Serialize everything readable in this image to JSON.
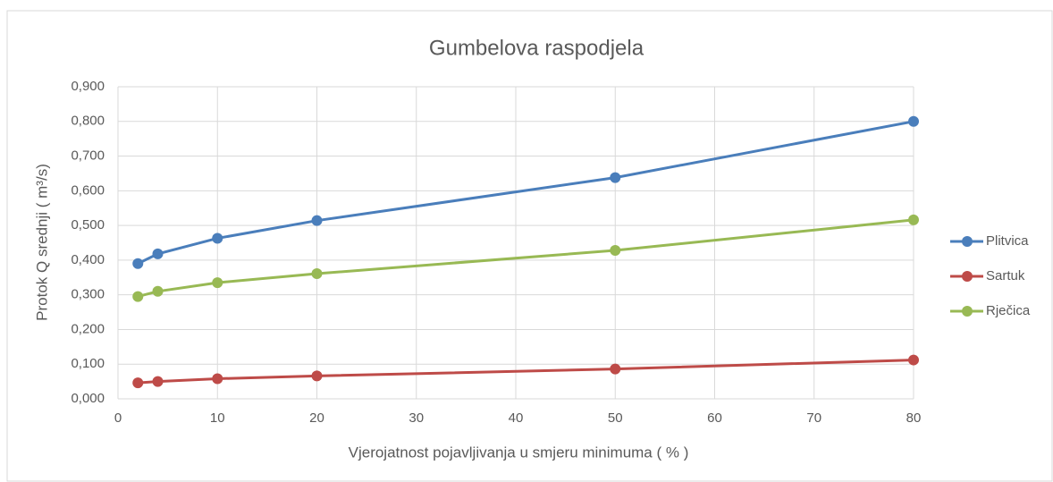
{
  "chart_data": {
    "type": "line",
    "title": "Gumbelova raspodjela",
    "x_label": "Vjerojatnost pojavljivanja  u smjeru minimuma ( % )",
    "y_label": "Protok Q srednji ( m³/s)",
    "x": [
      2,
      4,
      10,
      20,
      50,
      80
    ],
    "series": [
      {
        "name": "Plitvica",
        "color": "#4a7ebb",
        "values": [
          0.39,
          0.418,
          0.463,
          0.514,
          0.638,
          0.8
        ]
      },
      {
        "name": "Sartuk",
        "color": "#be4b48",
        "values": [
          0.046,
          0.05,
          0.058,
          0.066,
          0.086,
          0.112
        ]
      },
      {
        "name": "Rječica",
        "color": "#98b954",
        "values": [
          0.295,
          0.31,
          0.335,
          0.361,
          0.428,
          0.516
        ]
      }
    ],
    "xlim": [
      0,
      80
    ],
    "xticks": [
      0,
      10,
      20,
      30,
      40,
      50,
      60,
      70,
      80
    ],
    "ylim": [
      0,
      0.9
    ],
    "yticks": [
      {
        "value": 0,
        "label": "0,000"
      },
      {
        "value": 0.1,
        "label": "0,100"
      },
      {
        "value": 0.2,
        "label": "0,200"
      },
      {
        "value": 0.3,
        "label": "0,300"
      },
      {
        "value": 0.4,
        "label": "0,400"
      },
      {
        "value": 0.5,
        "label": "0,500"
      },
      {
        "value": 0.6,
        "label": "0,600"
      },
      {
        "value": 0.7,
        "label": "0,700"
      },
      {
        "value": 0.8,
        "label": "0,800"
      },
      {
        "value": 0.9,
        "label": "0,900"
      }
    ],
    "grid": true,
    "legend": "right"
  }
}
